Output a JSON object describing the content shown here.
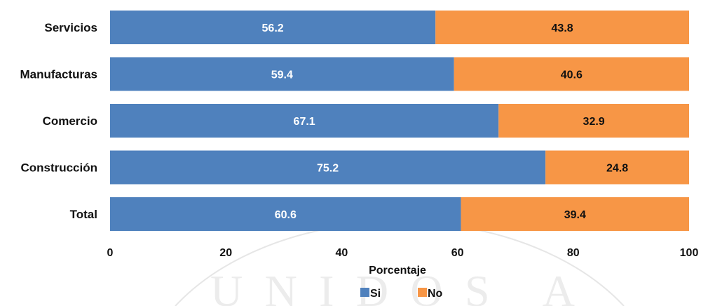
{
  "chart_data": {
    "type": "bar",
    "orientation": "horizontal",
    "stacked": true,
    "categories": [
      "Servicios",
      "Manufacturas",
      "Comercio",
      "Construcción",
      "Total"
    ],
    "series": [
      {
        "name": "Si",
        "color": "#4f81bd",
        "label_color": "#ffffff",
        "values": [
          56.2,
          59.4,
          67.1,
          75.2,
          60.6
        ]
      },
      {
        "name": "No",
        "color": "#f79646",
        "label_color": "#111111",
        "values": [
          43.8,
          40.6,
          32.9,
          24.8,
          39.4
        ]
      }
    ],
    "xlabel": "Porcentaje",
    "ylabel": "",
    "title": "",
    "xlim": [
      0,
      100
    ],
    "xticks": [
      0,
      20,
      40,
      60,
      80,
      100
    ],
    "grid": false,
    "legend_position": "bottom"
  },
  "watermark": {
    "text": "UNIDOS A",
    "style": "faint seal"
  }
}
